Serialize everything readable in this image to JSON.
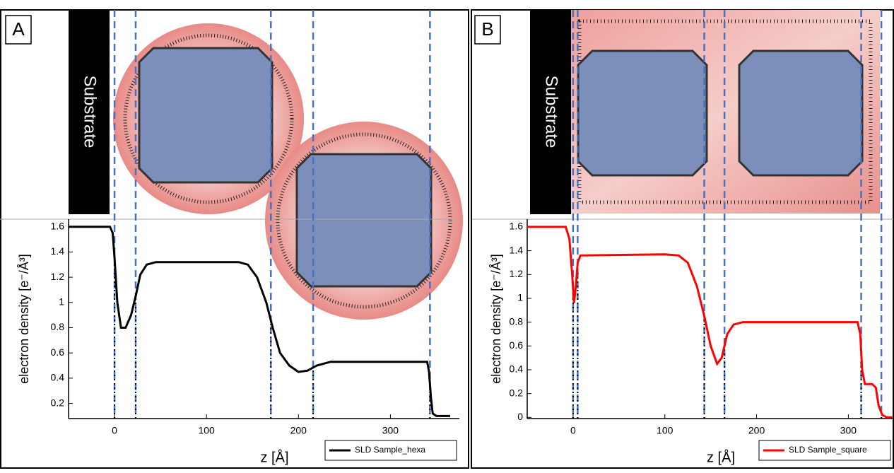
{
  "panels": [
    {
      "label": "A",
      "substrate": "Substrate"
    },
    {
      "label": "B",
      "substrate": "Substrate"
    }
  ],
  "chart_data": [
    {
      "type": "line",
      "x_label": "z [Å]",
      "y_label": "electron density [e⁻/Å³]",
      "xlim": [
        -50,
        375
      ],
      "ylim": [
        0.08,
        1.66
      ],
      "xticks": [
        0,
        100,
        200,
        300
      ],
      "yticks": [
        0.2,
        0.4,
        0.6,
        0.8,
        1.0,
        1.2,
        1.4,
        1.6
      ],
      "legend": "lower right",
      "boundaries": [
        0,
        23,
        170,
        216,
        343
      ],
      "series": [
        {
          "name": "SLD Sample_hexa",
          "color": "#000000",
          "x": [
            -50,
            -5,
            -2,
            0,
            3,
            7,
            12,
            18,
            23,
            28,
            35,
            45,
            100,
            135,
            145,
            155,
            165,
            172,
            180,
            190,
            200,
            210,
            220,
            235,
            300,
            340,
            342,
            344,
            346,
            350,
            365
          ],
          "values": [
            1.6,
            1.6,
            1.55,
            1.35,
            1.0,
            0.8,
            0.8,
            0.9,
            1.05,
            1.22,
            1.3,
            1.32,
            1.32,
            1.32,
            1.3,
            1.2,
            1.0,
            0.8,
            0.6,
            0.5,
            0.45,
            0.46,
            0.5,
            0.53,
            0.53,
            0.53,
            0.45,
            0.25,
            0.12,
            0.1,
            0.1
          ]
        }
      ]
    },
    {
      "type": "line",
      "x_label": "z [Å]",
      "y_label": "electron density [e⁻/Å³]",
      "xlim": [
        -50,
        349
      ],
      "ylim": [
        -0.01,
        1.665
      ],
      "xticks": [
        0,
        100,
        200,
        300
      ],
      "yticks": [
        0.0,
        0.2,
        0.4,
        0.6,
        0.8,
        1.0,
        1.2,
        1.4,
        1.6
      ],
      "legend": "lower right",
      "boundaries": [
        0,
        5,
        143,
        165,
        314,
        336
      ],
      "series": [
        {
          "name": "SLD Sample_square",
          "color": "#ff0000",
          "x": [
            -50,
            -8,
            -4,
            -1,
            1,
            3,
            5,
            8,
            100,
            115,
            125,
            135,
            143,
            150,
            157,
            162,
            168,
            175,
            185,
            310,
            313,
            315,
            318,
            326,
            330,
            333,
            337,
            342,
            348
          ],
          "values": [
            1.6,
            1.6,
            1.5,
            1.2,
            0.96,
            1.1,
            1.3,
            1.36,
            1.37,
            1.36,
            1.3,
            1.1,
            0.85,
            0.6,
            0.45,
            0.5,
            0.7,
            0.78,
            0.8,
            0.8,
            0.7,
            0.4,
            0.28,
            0.28,
            0.25,
            0.1,
            0.02,
            0,
            0
          ]
        }
      ]
    }
  ]
}
